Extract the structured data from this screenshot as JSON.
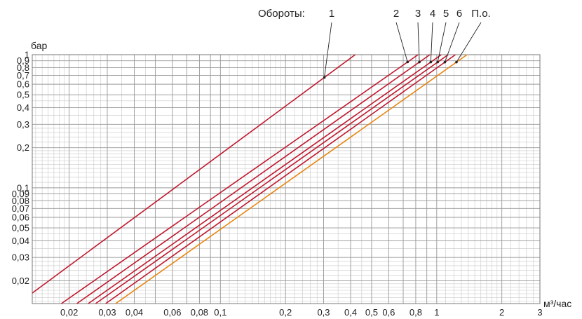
{
  "chart_data": {
    "type": "line",
    "title": "",
    "xlabel": "м³/час",
    "ylabel": "бар",
    "x_scale": "log",
    "y_scale": "log",
    "xlim": [
      0.0135,
      3
    ],
    "ylim": [
      0.0135,
      1
    ],
    "grid": true,
    "x_ticks": [
      {
        "value": 0.02,
        "label": "0,02"
      },
      {
        "value": 0.03,
        "label": "0,03"
      },
      {
        "value": 0.04,
        "label": "0,04"
      },
      {
        "value": 0.06,
        "label": "0,06"
      },
      {
        "value": 0.08,
        "label": "0,08"
      },
      {
        "value": 0.1,
        "label": "0,1"
      },
      {
        "value": 0.2,
        "label": "0,2"
      },
      {
        "value": 0.3,
        "label": "0,3"
      },
      {
        "value": 0.4,
        "label": "0,4"
      },
      {
        "value": 0.5,
        "label": "0,5"
      },
      {
        "value": 0.6,
        "label": "0,6"
      },
      {
        "value": 0.8,
        "label": "0,8"
      },
      {
        "value": 1,
        "label": "1"
      },
      {
        "value": 2,
        "label": "2"
      },
      {
        "value": 3,
        "label": "3"
      }
    ],
    "y_ticks": [
      {
        "value": 1,
        "label": "1"
      },
      {
        "value": 0.9,
        "label": "0,9"
      },
      {
        "value": 0.8,
        "label": "0,8"
      },
      {
        "value": 0.7,
        "label": "0,7"
      },
      {
        "value": 0.6,
        "label": "0,6"
      },
      {
        "value": 0.5,
        "label": "0,5"
      },
      {
        "value": 0.4,
        "label": "0,4"
      },
      {
        "value": 0.3,
        "label": "0,3"
      },
      {
        "value": 0.2,
        "label": "0,2"
      },
      {
        "value": 0.1,
        "label": "0,1"
      },
      {
        "value": 0.09,
        "label": "0,09"
      },
      {
        "value": 0.08,
        "label": "0,08"
      },
      {
        "value": 0.07,
        "label": "0,07"
      },
      {
        "value": 0.06,
        "label": "0,06"
      },
      {
        "value": 0.05,
        "label": "0,05"
      },
      {
        "value": 0.04,
        "label": "0,04"
      },
      {
        "value": 0.03,
        "label": "0,03"
      },
      {
        "value": 0.02,
        "label": "0,02"
      }
    ],
    "legend_heading": "Обороты:",
    "series": [
      {
        "name": "1",
        "color": "#c0182e",
        "x": [
          0.0135,
          0.42
        ],
        "y": [
          0.0162,
          1
        ]
      },
      {
        "name": "2",
        "color": "#c0182e",
        "x": [
          0.0184,
          0.82
        ],
        "y": [
          0.0135,
          1
        ]
      },
      {
        "name": "3",
        "color": "#c0182e",
        "x": [
          0.0217,
          0.93
        ],
        "y": [
          0.0135,
          1
        ]
      },
      {
        "name": "4",
        "color": "#c0182e",
        "x": [
          0.0245,
          1.05
        ],
        "y": [
          0.0135,
          1
        ]
      },
      {
        "name": "5",
        "color": "#c0182e",
        "x": [
          0.0265,
          1.13
        ],
        "y": [
          0.0135,
          1
        ]
      },
      {
        "name": "6",
        "color": "#c0182e",
        "x": [
          0.0295,
          1.22
        ],
        "y": [
          0.0135,
          1
        ]
      },
      {
        "name": "П.о.",
        "color": "#e8850f",
        "x": [
          0.0328,
          1.38
        ],
        "y": [
          0.0135,
          1
        ]
      }
    ]
  }
}
